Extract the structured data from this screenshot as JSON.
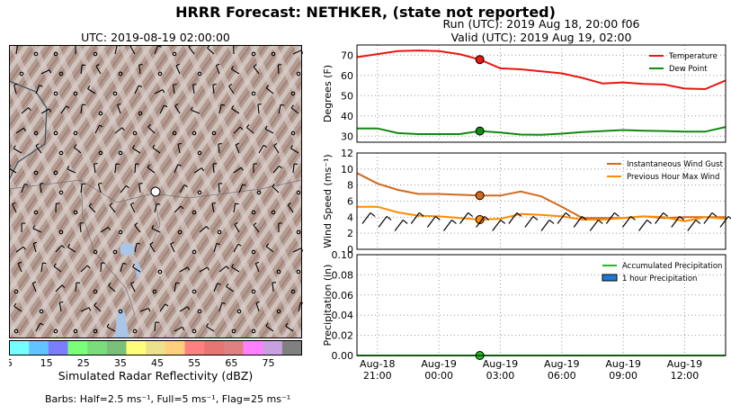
{
  "title": "HRRR Forecast: NETHKER, (state not reported)",
  "map": {
    "title": "UTC: 2019-08-19 02:00:00",
    "colorbar": {
      "label": "Simulated Radar Reflectivity (dBZ)",
      "tick_labels": [
        "5",
        "15",
        "25",
        "35",
        "45",
        "55",
        "65",
        "75"
      ],
      "colors": [
        "#73ffff",
        "#61c4ff",
        "#7c7cff",
        "#79ff79",
        "#7adc7a",
        "#7ac07a",
        "#ffff77",
        "#ede28b",
        "#ffcf7d",
        "#ff8080",
        "#e87474",
        "#e08080",
        "#ff80ff",
        "#c8a0e0",
        "#808080"
      ]
    },
    "footnote": "Barbs: Half=2.5 ms⁻¹, Full=5 ms⁻¹, Flag=25 ms⁻¹"
  },
  "meteogram": {
    "run_label": "Run (UTC): 2019 Aug 18, 20:00 f06",
    "valid_label": "Valid (UTC): 2019 Aug 19, 02:00",
    "x_tick_labels": [
      {
        "line1": "Aug-18",
        "line2": "21:00"
      },
      {
        "line1": "Aug-19",
        "line2": "00:00"
      },
      {
        "line1": "Aug-19",
        "line2": "03:00"
      },
      {
        "line1": "Aug-19",
        "line2": "06:00"
      },
      {
        "line1": "Aug-19",
        "line2": "09:00"
      },
      {
        "line1": "Aug-19",
        "line2": "12:00"
      }
    ]
  },
  "chart_data": [
    {
      "type": "line",
      "ylabel": "Degrees (F)",
      "ylim": [
        27,
        75
      ],
      "yticks": [
        30,
        40,
        50,
        60,
        70
      ],
      "x": [
        "2019-08-18 20:00",
        "2019-08-18 21:00",
        "2019-08-18 22:00",
        "2019-08-18 23:00",
        "2019-08-19 00:00",
        "2019-08-19 01:00",
        "2019-08-19 02:00",
        "2019-08-19 03:00",
        "2019-08-19 04:00",
        "2019-08-19 05:00",
        "2019-08-19 06:00",
        "2019-08-19 07:00",
        "2019-08-19 08:00",
        "2019-08-19 09:00",
        "2019-08-19 10:00",
        "2019-08-19 11:00",
        "2019-08-19 12:00",
        "2019-08-19 13:00",
        "2019-08-19 14:00"
      ],
      "series": [
        {
          "name": "Temperature",
          "color": "#e8170f",
          "values": [
            69,
            70.5,
            72,
            72.3,
            72,
            70.5,
            67.8,
            63.5,
            63,
            62,
            61,
            58.8,
            56,
            56.5,
            55.8,
            55.5,
            53.5,
            53.2,
            57.5
          ]
        },
        {
          "name": "Dew Point",
          "color": "#118811",
          "values": [
            33.8,
            33.8,
            31.5,
            31,
            31,
            31,
            32.5,
            31.8,
            30.8,
            30.7,
            31.2,
            32,
            32.5,
            33,
            32.7,
            32.5,
            32.2,
            32.2,
            34.5
          ]
        }
      ],
      "legend": "top-right",
      "grid": true
    },
    {
      "type": "line",
      "ylabel": "Wind Speed (ms⁻¹)",
      "ylim": [
        0,
        12
      ],
      "yticks": [
        0,
        2,
        4,
        6,
        8,
        10,
        12
      ],
      "x": [
        "2019-08-18 20:00",
        "2019-08-18 21:00",
        "2019-08-18 22:00",
        "2019-08-18 23:00",
        "2019-08-19 00:00",
        "2019-08-19 01:00",
        "2019-08-19 02:00",
        "2019-08-19 03:00",
        "2019-08-19 04:00",
        "2019-08-19 05:00",
        "2019-08-19 06:00",
        "2019-08-19 07:00",
        "2019-08-19 08:00",
        "2019-08-19 09:00",
        "2019-08-19 10:00",
        "2019-08-19 11:00",
        "2019-08-19 12:00",
        "2019-08-19 13:00",
        "2019-08-19 14:00"
      ],
      "series": [
        {
          "name": "Instantaneous Wind Gust",
          "color": "#d2691e",
          "values": [
            9.5,
            8.2,
            7.4,
            6.9,
            6.9,
            6.8,
            6.7,
            6.7,
            7.2,
            6.6,
            5.3,
            3.9,
            3.9,
            3.9,
            4.1,
            3.9,
            4.0,
            4.0,
            4.0
          ]
        },
        {
          "name": "Previous Hour Max Wind",
          "color": "#ff8c00",
          "values": [
            5.3,
            5.3,
            4.6,
            4.2,
            4.1,
            3.9,
            3.7,
            3.8,
            4.4,
            4.3,
            4.1,
            3.7,
            3.7,
            3.9,
            4.1,
            4.0,
            3.5,
            4.0,
            3.8
          ]
        }
      ],
      "legend": "top-right",
      "grid": true,
      "has_wind_barbs": true
    },
    {
      "type": "bar",
      "ylabel": "Precipitation (in)",
      "ylim": [
        0,
        0.1
      ],
      "yticks": [
        0.0,
        0.02,
        0.04,
        0.06,
        0.08,
        0.1
      ],
      "x": [
        "2019-08-18 20:00",
        "2019-08-18 21:00",
        "2019-08-18 22:00",
        "2019-08-18 23:00",
        "2019-08-19 00:00",
        "2019-08-19 01:00",
        "2019-08-19 02:00",
        "2019-08-19 03:00",
        "2019-08-19 04:00",
        "2019-08-19 05:00",
        "2019-08-19 06:00",
        "2019-08-19 07:00",
        "2019-08-19 08:00",
        "2019-08-19 09:00",
        "2019-08-19 10:00",
        "2019-08-19 11:00",
        "2019-08-19 12:00",
        "2019-08-19 13:00",
        "2019-08-19 14:00"
      ],
      "series": [
        {
          "name": "Accumulated Precipitation",
          "type": "line",
          "color": "#22bb22",
          "values": [
            0,
            0,
            0,
            0,
            0,
            0,
            0,
            0,
            0,
            0,
            0,
            0,
            0,
            0,
            0,
            0,
            0,
            0,
            0
          ]
        },
        {
          "name": "1 hour Precipitation",
          "type": "bar",
          "color": "#1e78d8",
          "values": [
            0,
            0,
            0,
            0,
            0,
            0,
            0,
            0,
            0,
            0,
            0,
            0,
            0,
            0,
            0,
            0,
            0,
            0,
            0
          ]
        }
      ],
      "legend": "top-right",
      "grid": true
    }
  ]
}
